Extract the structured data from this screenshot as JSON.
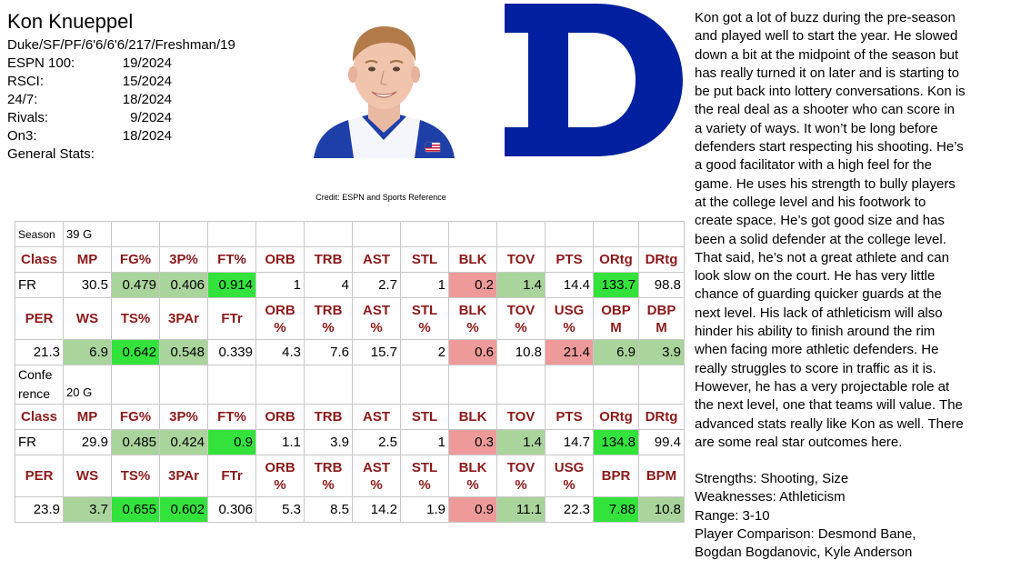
{
  "player": {
    "name": "Kon Knueppel",
    "bio": "Duke/SF/PF/6'6/6'6/217/Freshman/19",
    "rankings": [
      {
        "label": "ESPN 100:",
        "value": "19/2024"
      },
      {
        "label": "RSCI:",
        "value": "15/2024"
      },
      {
        "label": "24/7:",
        "value": "18/2024"
      },
      {
        "label": "Rivals:",
        "value": "9/2024"
      },
      {
        "label": "On3:",
        "value": "18/2024"
      }
    ],
    "general_stats_label": "General Stats:"
  },
  "credit": "Credit: ESPN and Sports Reference",
  "colors": {
    "header_red": "#8b1a1a",
    "good_light": "#a9d49b",
    "good_bright": "#33e33c",
    "bad_light": "#ee9a9a",
    "duke_blue": "#00209f"
  },
  "icons": {
    "headshot": "player-headshot-photo",
    "logo": "duke-d-logo"
  },
  "stats": {
    "season": {
      "label": "Season",
      "games": "39 G",
      "basic_headers": [
        "Class",
        "MP",
        "FG%",
        "3P%",
        "FT%",
        "ORB",
        "TRB",
        "AST",
        "STL",
        "BLK",
        "TOV",
        "PTS",
        "ORtg",
        "DRtg"
      ],
      "basic_values": [
        "FR",
        "30.5",
        "0.479",
        "0.406",
        "0.914",
        "1",
        "4",
        "2.7",
        "1",
        "0.2",
        "1.4",
        "14.4",
        "133.7",
        "98.8"
      ],
      "advanced_headers": [
        [
          "PER"
        ],
        [
          "WS"
        ],
        [
          "TS%"
        ],
        [
          "3PAr"
        ],
        [
          "FTr"
        ],
        [
          "ORB",
          "%"
        ],
        [
          "TRB",
          "%"
        ],
        [
          "AST",
          "%"
        ],
        [
          "STL",
          "%"
        ],
        [
          "BLK",
          "%"
        ],
        [
          "TOV",
          "%"
        ],
        [
          "USG",
          "%"
        ],
        [
          "OBP",
          "M"
        ],
        [
          "DBP",
          "M"
        ]
      ],
      "advanced_values": [
        "21.3",
        "6.9",
        "0.642",
        "0.548",
        "0.339",
        "4.3",
        "7.6",
        "15.7",
        "2",
        "0.6",
        "10.8",
        "21.4",
        "6.9",
        "3.9"
      ]
    },
    "conference": {
      "label_lines": [
        "Confe",
        "rence"
      ],
      "games": "20 G",
      "basic_headers": [
        "Class",
        "MP",
        "FG%",
        "3P%",
        "FT%",
        "ORB",
        "TRB",
        "AST",
        "STL",
        "BLK",
        "TOV",
        "PTS",
        "ORtg",
        "DRtg"
      ],
      "basic_values": [
        "FR",
        "29.9",
        "0.485",
        "0.424",
        "0.9",
        "1.1",
        "3.9",
        "2.5",
        "1",
        "0.3",
        "1.4",
        "14.7",
        "134.8",
        "99.4"
      ],
      "advanced_headers": [
        [
          "PER"
        ],
        [
          "WS"
        ],
        [
          "TS%"
        ],
        [
          "3PAr"
        ],
        [
          "FTr"
        ],
        [
          "ORB",
          "%"
        ],
        [
          "TRB",
          "%"
        ],
        [
          "AST",
          "%"
        ],
        [
          "STL",
          "%"
        ],
        [
          "BLK",
          "%"
        ],
        [
          "TOV",
          "%"
        ],
        [
          "USG",
          "%"
        ],
        [
          "BPR"
        ],
        [
          "BPM"
        ]
      ],
      "advanced_values": [
        "23.9",
        "3.7",
        "0.655",
        "0.602",
        "0.306",
        "5.3",
        "8.5",
        "14.2",
        "1.9",
        "0.9",
        "11.1",
        "22.3",
        "7.88",
        "10.8"
      ]
    }
  },
  "report": {
    "lines": [
      "Kon got a lot of buzz during the pre-season",
      "and played well to start the year. He slowed",
      "down a bit at the midpoint of the season but",
      "has really turned it on later and is starting to",
      "be put back into lottery conversations. Kon is",
      "the real deal as a shooter who can score in",
      "a variety of ways. It won’t be long before",
      "defenders start respecting his shooting. He’s",
      "a good facilitator with a high feel for the",
      "game. He uses his strength to bully players",
      "at the college level and his footwork to",
      "create space. He’s got good size and has",
      "been a solid defender at the college level.",
      "That said, he’s not a great athlete and can",
      "look slow on the court. He has very little",
      "chance of guarding quicker guards at the",
      "next level. His lack of athleticism will also",
      "hinder his ability to finish around the rim",
      "when facing more athletic defenders. He",
      "really struggles to score in traffic as it is.",
      "However, he has a very projectable role at",
      "the next level, one that teams will value. The",
      "advanced stats really like Kon as well. There",
      "are some real star outcomes here."
    ],
    "summary": [
      "Strengths: Shooting, Size",
      "Weaknesses: Athleticism",
      "Range: 3-10",
      "Player Comparison: Desmond Bane,",
      "Bogdan Bogdanovic, Kyle Anderson"
    ]
  }
}
